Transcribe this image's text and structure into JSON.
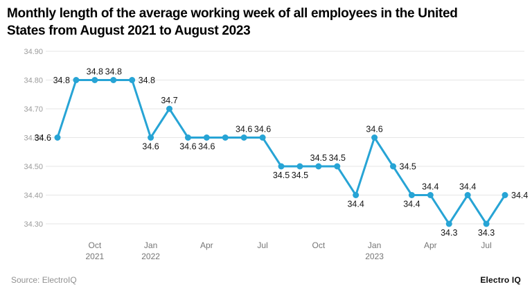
{
  "title": "Monthly length of the average working week of all employees in the United States from August 2021 to August 2023",
  "footer": {
    "source": "Source: ElectroIQ",
    "brand": "Electro IQ"
  },
  "colors": {
    "line": "#27a4d5",
    "marker": "#27a4d5",
    "point_label": "#141414",
    "axis_text_y": "#9b9b9b",
    "axis_text_x": "#757575",
    "grid": "#e6e6e6",
    "title": "#000000",
    "background": "#ffffff"
  },
  "chart_data": {
    "type": "line",
    "title": "Monthly length of the average working week of all employees in the United States from August 2021 to August 2023",
    "xlabel": "",
    "ylabel": "",
    "x": [
      "Aug 2021",
      "Sep 2021",
      "Oct 2021",
      "Nov 2021",
      "Dec 2021",
      "Jan 2022",
      "Feb 2022",
      "Mar 2022",
      "Apr 2022",
      "May 2022",
      "Jun 2022",
      "Jul 2022",
      "Aug 2022",
      "Sep 2022",
      "Oct 2022",
      "Nov 2022",
      "Dec 2022",
      "Jan 2023",
      "Feb 2023",
      "Mar 2023",
      "Apr 2023",
      "May 2023",
      "Jun 2023",
      "Jul 2023",
      "Aug 2023"
    ],
    "values": [
      34.6,
      34.8,
      34.8,
      34.8,
      34.8,
      34.6,
      34.7,
      34.6,
      34.6,
      34.6,
      34.6,
      34.6,
      34.5,
      34.5,
      34.5,
      34.5,
      34.4,
      34.6,
      34.5,
      34.4,
      34.4,
      34.3,
      34.4,
      34.3,
      34.4
    ],
    "label_placements": [
      "left",
      "left",
      "above",
      "above",
      "right",
      "below",
      "above",
      "below",
      "below",
      "none",
      "above",
      "above",
      "below",
      "below",
      "above",
      "above",
      "below",
      "above",
      "right",
      "below",
      "above",
      "below",
      "above",
      "below",
      "right"
    ],
    "y_ticks": [
      "34.90",
      "34.80",
      "34.70",
      "34.60",
      "34.50",
      "34.40",
      "34.30"
    ],
    "ylim": [
      34.3,
      34.9
    ],
    "x_ticks": [
      {
        "index": 2,
        "line1": "Oct",
        "line2": "2021"
      },
      {
        "index": 5,
        "line1": "Jan",
        "line2": "2022"
      },
      {
        "index": 8,
        "line1": "Apr",
        "line2": ""
      },
      {
        "index": 11,
        "line1": "Jul",
        "line2": ""
      },
      {
        "index": 14,
        "line1": "Oct",
        "line2": ""
      },
      {
        "index": 17,
        "line1": "Jan",
        "line2": "2023"
      },
      {
        "index": 20,
        "line1": "Apr",
        "line2": ""
      },
      {
        "index": 23,
        "line1": "Jul",
        "line2": ""
      }
    ],
    "grid": true,
    "legend": false
  }
}
